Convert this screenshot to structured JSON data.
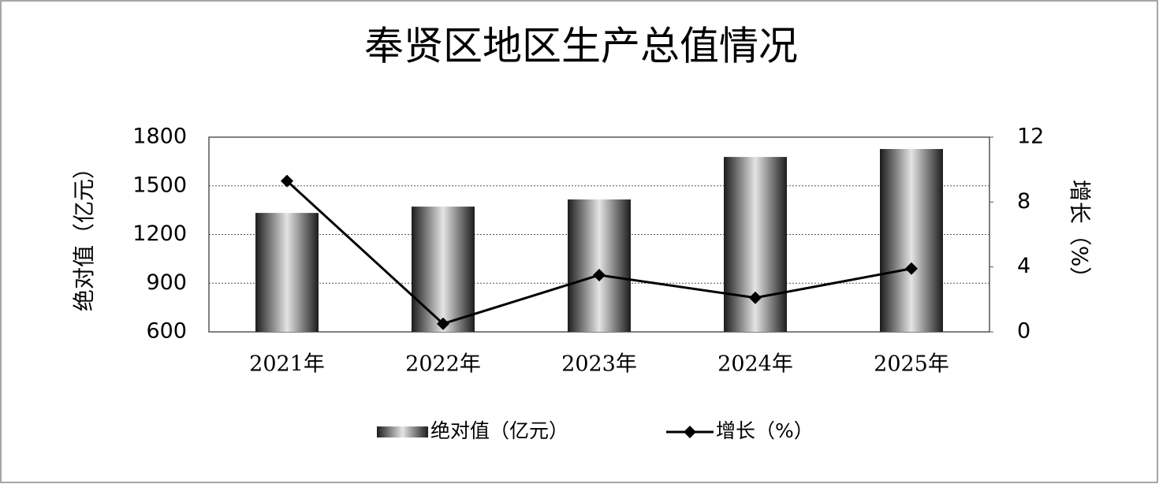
{
  "chart_data": {
    "type": "bar",
    "title": "奉贤区地区生产总值情况",
    "categories": [
      "2021年",
      "2022年",
      "2023年",
      "2024年",
      "2025年"
    ],
    "y_label": "绝对值（亿元）",
    "y2_label": "增长（%）",
    "series": [
      {
        "name": "绝对值（亿元）",
        "type": "bar",
        "values": [
          1333,
          1372,
          1416,
          1678,
          1727
        ]
      },
      {
        "name": "增长（%）",
        "type": "line",
        "axis": "y2",
        "color": "#000000",
        "values": [
          9.3,
          0.5,
          3.5,
          2.1,
          3.9
        ]
      }
    ],
    "ylim": [
      600,
      1800
    ],
    "yticks": [
      600,
      900,
      1200,
      1500,
      1800
    ],
    "y2lim": [
      0,
      12
    ],
    "y2ticks": [
      0,
      4,
      8,
      12
    ],
    "grid": true,
    "legend": "bottom"
  }
}
